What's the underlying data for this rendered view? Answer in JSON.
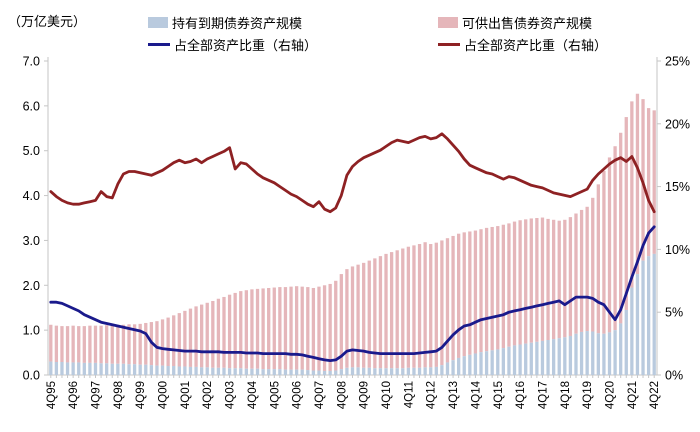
{
  "unit_label": "（万亿美元）",
  "legend": {
    "items": [
      {
        "label": "持有到期债券资产规模",
        "swatch": "rect",
        "color": "#b9cade"
      },
      {
        "label": "可供出售债券资产规模",
        "swatch": "rect",
        "color": "#e5b6ba"
      },
      {
        "label": "占全部资产比重（右轴）",
        "swatch": "line",
        "color": "#1a1a8c"
      },
      {
        "label": "占全部资产比重（右轴）",
        "swatch": "line",
        "color": "#8e2123"
      }
    ]
  },
  "chart_data": {
    "type": "bar-line-combo",
    "title": "",
    "y_left_label": "（万亿美元）",
    "x_frequency": "quarterly",
    "x_start": "4Q95",
    "x_end": "4Q22",
    "points_per_tick": 4,
    "x_tick_labels": [
      "4Q95",
      "4Q96",
      "4Q97",
      "4Q98",
      "4Q99",
      "4Q00",
      "4Q01",
      "4Q02",
      "4Q03",
      "4Q04",
      "4Q05",
      "4Q06",
      "4Q07",
      "4Q08",
      "4Q09",
      "4Q10",
      "4Q11",
      "4Q12",
      "4Q13",
      "4Q14",
      "4Q15",
      "4Q16",
      "4Q17",
      "4Q18",
      "4Q19",
      "4Q20",
      "4Q21",
      "4Q22"
    ],
    "left_axis": {
      "min": 0,
      "max": 7,
      "ticks": [
        "0.0",
        "1.0",
        "2.0",
        "3.0",
        "4.0",
        "5.0",
        "6.0",
        "7.0"
      ],
      "grid": false
    },
    "right_axis": {
      "min": 0,
      "max": 25,
      "ticks": [
        "0%",
        "5%",
        "10%",
        "15%",
        "20%",
        "25%"
      ],
      "grid": false
    },
    "legend_position": "top",
    "series": [
      {
        "name": "持有到期债券资产规模",
        "type": "bar",
        "stack": "bonds",
        "axis": "left",
        "color": "#b9cade",
        "values": [
          0.3,
          0.29,
          0.29,
          0.28,
          0.28,
          0.28,
          0.27,
          0.27,
          0.27,
          0.26,
          0.26,
          0.25,
          0.25,
          0.25,
          0.24,
          0.24,
          0.23,
          0.23,
          0.22,
          0.21,
          0.21,
          0.2,
          0.2,
          0.19,
          0.19,
          0.18,
          0.18,
          0.17,
          0.17,
          0.16,
          0.16,
          0.16,
          0.15,
          0.15,
          0.15,
          0.14,
          0.14,
          0.14,
          0.13,
          0.13,
          0.13,
          0.13,
          0.12,
          0.12,
          0.12,
          0.12,
          0.11,
          0.1,
          0.1,
          0.09,
          0.09,
          0.1,
          0.13,
          0.16,
          0.17,
          0.17,
          0.16,
          0.16,
          0.15,
          0.15,
          0.15,
          0.15,
          0.15,
          0.15,
          0.16,
          0.16,
          0.16,
          0.17,
          0.17,
          0.18,
          0.22,
          0.28,
          0.33,
          0.38,
          0.42,
          0.45,
          0.48,
          0.51,
          0.53,
          0.55,
          0.57,
          0.6,
          0.63,
          0.66,
          0.68,
          0.7,
          0.72,
          0.74,
          0.76,
          0.78,
          0.8,
          0.82,
          0.84,
          0.87,
          0.92,
          0.96,
          0.98,
          0.97,
          0.93,
          0.92,
          0.95,
          1.0,
          1.15,
          1.45,
          1.95,
          2.25,
          2.55,
          2.65,
          2.7
        ]
      },
      {
        "name": "可供出售债券资产规模",
        "type": "bar",
        "stack": "bonds",
        "axis": "left",
        "color": "#e5b6ba",
        "values": [
          0.82,
          0.81,
          0.8,
          0.81,
          0.82,
          0.81,
          0.82,
          0.83,
          0.83,
          0.84,
          0.85,
          0.86,
          0.87,
          0.87,
          0.89,
          0.89,
          0.91,
          0.93,
          0.96,
          0.99,
          1.03,
          1.08,
          1.13,
          1.19,
          1.24,
          1.3,
          1.35,
          1.4,
          1.44,
          1.49,
          1.54,
          1.58,
          1.64,
          1.68,
          1.72,
          1.75,
          1.77,
          1.78,
          1.8,
          1.81,
          1.82,
          1.83,
          1.84,
          1.85,
          1.86,
          1.85,
          1.85,
          1.84,
          1.87,
          1.91,
          1.94,
          2.0,
          2.12,
          2.2,
          2.25,
          2.29,
          2.34,
          2.39,
          2.45,
          2.5,
          2.55,
          2.59,
          2.63,
          2.67,
          2.7,
          2.73,
          2.76,
          2.79,
          2.75,
          2.77,
          2.78,
          2.77,
          2.77,
          2.77,
          2.76,
          2.75,
          2.74,
          2.74,
          2.75,
          2.75,
          2.75,
          2.75,
          2.75,
          2.76,
          2.77,
          2.77,
          2.77,
          2.76,
          2.75,
          2.7,
          2.66,
          2.62,
          2.62,
          2.65,
          2.68,
          2.72,
          2.77,
          2.98,
          3.32,
          3.63,
          3.9,
          4.1,
          4.25,
          4.3,
          4.15,
          4.02,
          3.6,
          3.3,
          3.2
        ]
      },
      {
        "name": "占全部资产比重（右轴）",
        "type": "line",
        "axis": "right",
        "color": "#1a1a8c",
        "values": [
          5.8,
          5.8,
          5.7,
          5.5,
          5.3,
          5.1,
          4.8,
          4.6,
          4.4,
          4.2,
          4.1,
          4.0,
          3.9,
          3.8,
          3.7,
          3.6,
          3.5,
          3.3,
          2.6,
          2.2,
          2.1,
          2.05,
          2.0,
          1.95,
          1.9,
          1.9,
          1.9,
          1.85,
          1.85,
          1.85,
          1.85,
          1.8,
          1.8,
          1.8,
          1.8,
          1.75,
          1.75,
          1.75,
          1.7,
          1.7,
          1.7,
          1.7,
          1.7,
          1.65,
          1.65,
          1.6,
          1.5,
          1.4,
          1.3,
          1.2,
          1.15,
          1.2,
          1.5,
          1.9,
          2.0,
          1.95,
          1.9,
          1.8,
          1.75,
          1.7,
          1.7,
          1.7,
          1.7,
          1.7,
          1.7,
          1.7,
          1.75,
          1.8,
          1.85,
          1.9,
          2.2,
          2.7,
          3.2,
          3.6,
          3.9,
          4.0,
          4.2,
          4.4,
          4.5,
          4.6,
          4.7,
          4.8,
          5.0,
          5.1,
          5.2,
          5.3,
          5.4,
          5.5,
          5.6,
          5.7,
          5.8,
          5.9,
          5.6,
          5.9,
          6.2,
          6.2,
          6.2,
          6.1,
          5.8,
          5.6,
          5.0,
          4.4,
          5.2,
          6.5,
          7.8,
          9.0,
          10.3,
          11.3,
          11.8
        ]
      },
      {
        "name": "占全部资产比重（右轴）",
        "type": "line",
        "axis": "right",
        "color": "#8e2123",
        "values": [
          14.6,
          14.2,
          13.9,
          13.7,
          13.6,
          13.6,
          13.7,
          13.8,
          13.9,
          14.6,
          14.2,
          14.1,
          15.2,
          16.0,
          16.2,
          16.2,
          16.1,
          16.0,
          15.9,
          16.1,
          16.3,
          16.6,
          16.9,
          17.1,
          16.9,
          17.0,
          17.2,
          16.9,
          17.2,
          17.4,
          17.6,
          17.8,
          18.1,
          16.4,
          16.9,
          16.8,
          16.4,
          16.0,
          15.7,
          15.5,
          15.3,
          15.0,
          14.7,
          14.4,
          14.2,
          13.9,
          13.6,
          13.4,
          13.8,
          13.2,
          13.0,
          13.3,
          14.3,
          15.9,
          16.6,
          17.0,
          17.3,
          17.5,
          17.7,
          17.9,
          18.2,
          18.5,
          18.7,
          18.6,
          18.5,
          18.7,
          18.9,
          19.0,
          18.8,
          18.9,
          19.2,
          18.8,
          18.3,
          17.8,
          17.2,
          16.7,
          16.5,
          16.3,
          16.1,
          16.0,
          15.8,
          15.6,
          15.8,
          15.7,
          15.5,
          15.3,
          15.1,
          15.0,
          14.9,
          14.7,
          14.5,
          14.4,
          14.3,
          14.2,
          14.4,
          14.6,
          14.8,
          15.5,
          16.0,
          16.4,
          16.8,
          17.1,
          17.3,
          17.0,
          17.4,
          16.5,
          15.3,
          13.9,
          13.0
        ]
      }
    ]
  },
  "style": {
    "axis_color": "#c6c6c6",
    "text_color": "#000000"
  }
}
